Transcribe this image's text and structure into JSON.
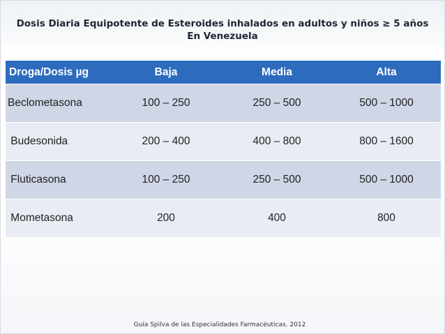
{
  "slide": {
    "title_line1": "Dosis Diaria Equipotente de Esteroides inhalados en adultos y niños ≥ 5 años",
    "title_line2": "En Venezuela",
    "footer": "Guía Spilva de las Especialidades Farmacéuticas. 2012"
  },
  "table": {
    "headers": [
      "Droga/Dosis µg",
      "Baja",
      "Media",
      "Alta"
    ],
    "rows": [
      [
        "Beclometasona",
        "100 – 250",
        "250 – 500",
        "500 – 1000"
      ],
      [
        " Budesonida",
        "200 – 400",
        "400 – 800",
        "800 – 1600"
      ],
      [
        " Fluticasona",
        "100 – 250",
        "250 – 500",
        "500 – 1000"
      ],
      [
        " Mometasona",
        "200",
        "400",
        "800"
      ]
    ]
  },
  "colors": {
    "header_bg": "#2d6bbd",
    "row_dark": "#cfd6e6",
    "row_light": "#e9ecf4"
  }
}
